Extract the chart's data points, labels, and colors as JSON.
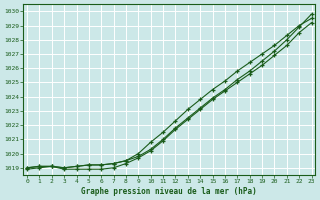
{
  "title": "Graphe pression niveau de la mer (hPa)",
  "bg_color": "#cce8e8",
  "grid_color": "#ffffff",
  "line_color": "#1a5c1a",
  "x_labels": [
    "0",
    "1",
    "2",
    "3",
    "4",
    "5",
    "6",
    "7",
    "8",
    "9",
    "10",
    "11",
    "12",
    "13",
    "14",
    "15",
    "16",
    "17",
    "18",
    "19",
    "20",
    "21",
    "22",
    "23"
  ],
  "ylim": [
    1018.5,
    1030.5
  ],
  "yticks": [
    1019,
    1020,
    1021,
    1022,
    1023,
    1024,
    1025,
    1026,
    1027,
    1028,
    1029,
    1030
  ],
  "series": [
    [
      1019.0,
      1019.1,
      1019.1,
      1019.0,
      1019.1,
      1019.2,
      1019.2,
      1019.3,
      1019.5,
      1019.8,
      1020.3,
      1021.0,
      1021.8,
      1022.5,
      1023.2,
      1023.9,
      1024.5,
      1025.2,
      1025.8,
      1026.5,
      1027.2,
      1028.0,
      1028.9,
      1029.8
    ],
    [
      1019.0,
      1019.1,
      1019.1,
      1019.0,
      1019.1,
      1019.2,
      1019.2,
      1019.3,
      1019.5,
      1020.0,
      1020.8,
      1021.5,
      1022.3,
      1023.1,
      1023.8,
      1024.5,
      1025.1,
      1025.8,
      1026.4,
      1027.0,
      1027.6,
      1028.3,
      1029.0,
      1029.5
    ],
    [
      1018.9,
      1019.0,
      1019.1,
      1018.9,
      1018.9,
      1018.9,
      1018.9,
      1019.0,
      1019.3,
      1019.7,
      1020.2,
      1020.9,
      1021.7,
      1022.4,
      1023.1,
      1023.8,
      1024.4,
      1025.0,
      1025.6,
      1026.2,
      1026.9,
      1027.6,
      1028.5,
      1029.2
    ]
  ]
}
